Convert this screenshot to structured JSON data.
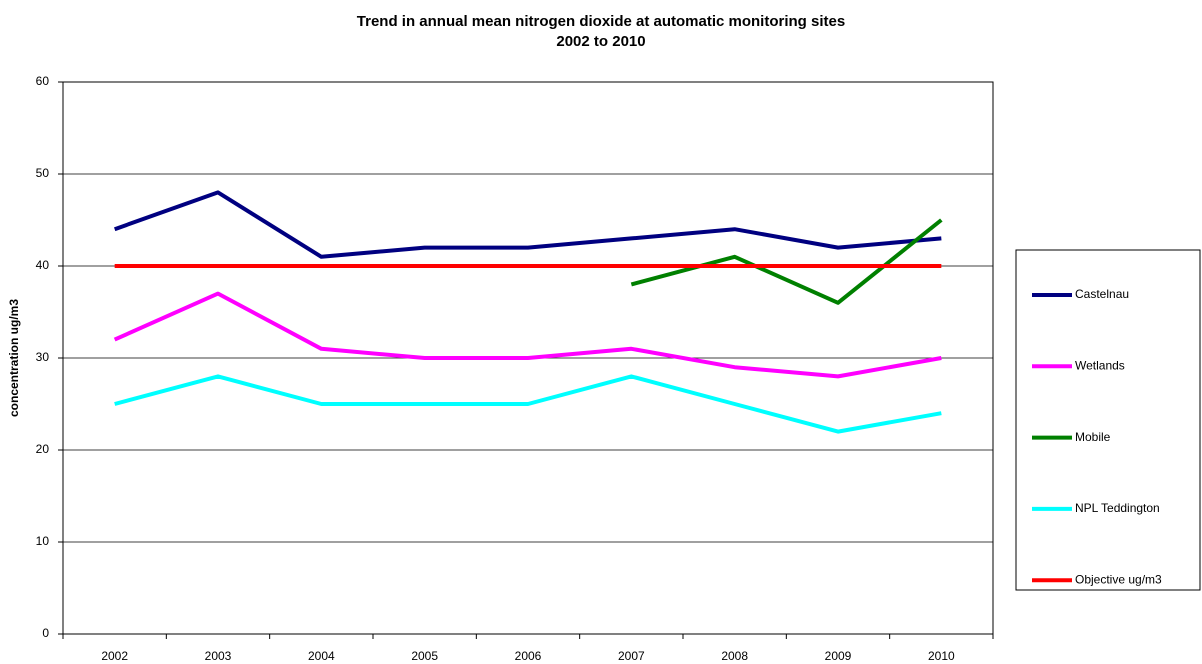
{
  "chart_data": {
    "type": "line",
    "title": "Trend in annual mean nitrogen dioxide at automatic monitoring sites",
    "subtitle": "2002 to 2010",
    "y_label": "concentration ug/m3",
    "categories": [
      "2002",
      "2003",
      "2004",
      "2005",
      "2006",
      "2007",
      "2008",
      "2009",
      "2010"
    ],
    "series": [
      {
        "name": "Castelnau",
        "color": "#000080",
        "values": [
          44,
          48,
          41,
          42,
          42,
          43,
          44,
          42,
          43
        ]
      },
      {
        "name": "Wetlands",
        "color": "#ff00ff",
        "values": [
          32,
          37,
          31,
          30,
          30,
          31,
          29,
          28,
          30
        ]
      },
      {
        "name": "Mobile",
        "color": "#008000",
        "values": [
          null,
          null,
          null,
          null,
          null,
          38,
          41,
          36,
          45
        ]
      },
      {
        "name": "NPL Teddington",
        "color": "#00ffff",
        "values": [
          25,
          28,
          25,
          25,
          25,
          28,
          25,
          22,
          24
        ]
      },
      {
        "name": "Objective ug/m3",
        "color": "#ff0000",
        "values": [
          40,
          40,
          40,
          40,
          40,
          40,
          40,
          40,
          40
        ]
      }
    ],
    "ylim": [
      0,
      60
    ],
    "yticks": [
      0,
      10,
      20,
      30,
      40,
      50,
      60
    ],
    "grid": true,
    "legend": "right"
  }
}
